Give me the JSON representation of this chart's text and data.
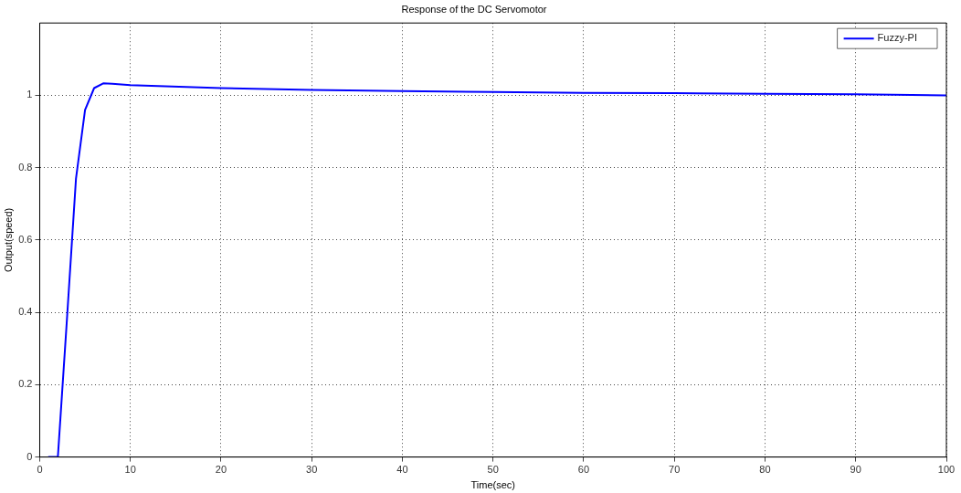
{
  "chart_data": {
    "type": "line",
    "title": "Response of the DC Servomotor",
    "xlabel": "Time(sec)",
    "ylabel": "Output(speed)",
    "xlim": [
      0,
      100
    ],
    "xticks": [
      0,
      10,
      20,
      30,
      40,
      50,
      60,
      70,
      80,
      90,
      100
    ],
    "ylim": [
      0,
      1.2
    ],
    "yticks": [
      0,
      0.2,
      0.4,
      0.6,
      0.8,
      1
    ],
    "grid": true,
    "legend": "top right",
    "marker": "none",
    "line_style": "solid",
    "series": [
      {
        "name": "Fuzzy-PI",
        "color": "#0000ff",
        "x": [
          1,
          2,
          3,
          4,
          5,
          6,
          7,
          8,
          10,
          20,
          30,
          40,
          50,
          60,
          70,
          80,
          90,
          100
        ],
        "values": [
          0,
          0,
          0.38,
          0.77,
          0.96,
          1.02,
          1.033,
          1.032,
          1.028,
          1.02,
          1.015,
          1.012,
          1.009,
          1.007,
          1.006,
          1.004,
          1.003,
          1.0
        ]
      }
    ]
  }
}
